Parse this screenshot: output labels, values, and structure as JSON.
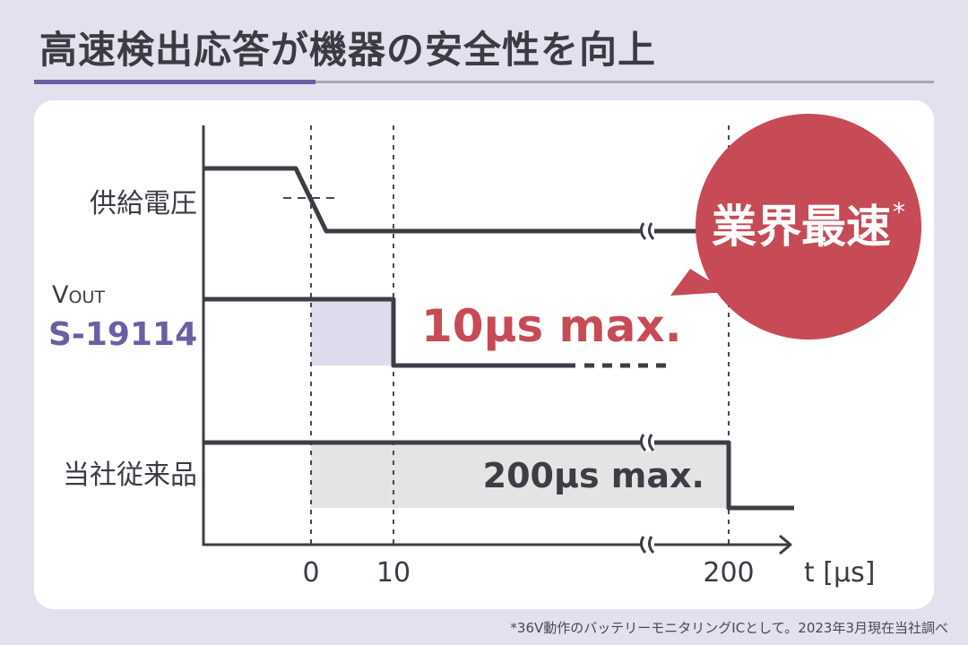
{
  "title": "高速検出応答が機器の安全性を向上",
  "rows": {
    "supply": "供給電圧",
    "vout_prefix": "V",
    "vout_suffix": "OUT",
    "product": "S-19114",
    "conventional": "当社従来品"
  },
  "annotations": {
    "fast_time": "10µs max.",
    "slow_time": "200µs max."
  },
  "badge": {
    "text": "業界最速",
    "mark": "*"
  },
  "axis": {
    "ticks": [
      "0",
      "10",
      "200"
    ],
    "unit_label": "t [µs]"
  },
  "footnote": "*36V動作のバッテリーモニタリングICとして。2023年3月現在当社調べ",
  "colors": {
    "accent": "#6a5fa3",
    "badge": "#c64b57",
    "line": "#3f3c45",
    "fast_shade": "#dedbec",
    "slow_shade": "#e4e4e4"
  }
}
